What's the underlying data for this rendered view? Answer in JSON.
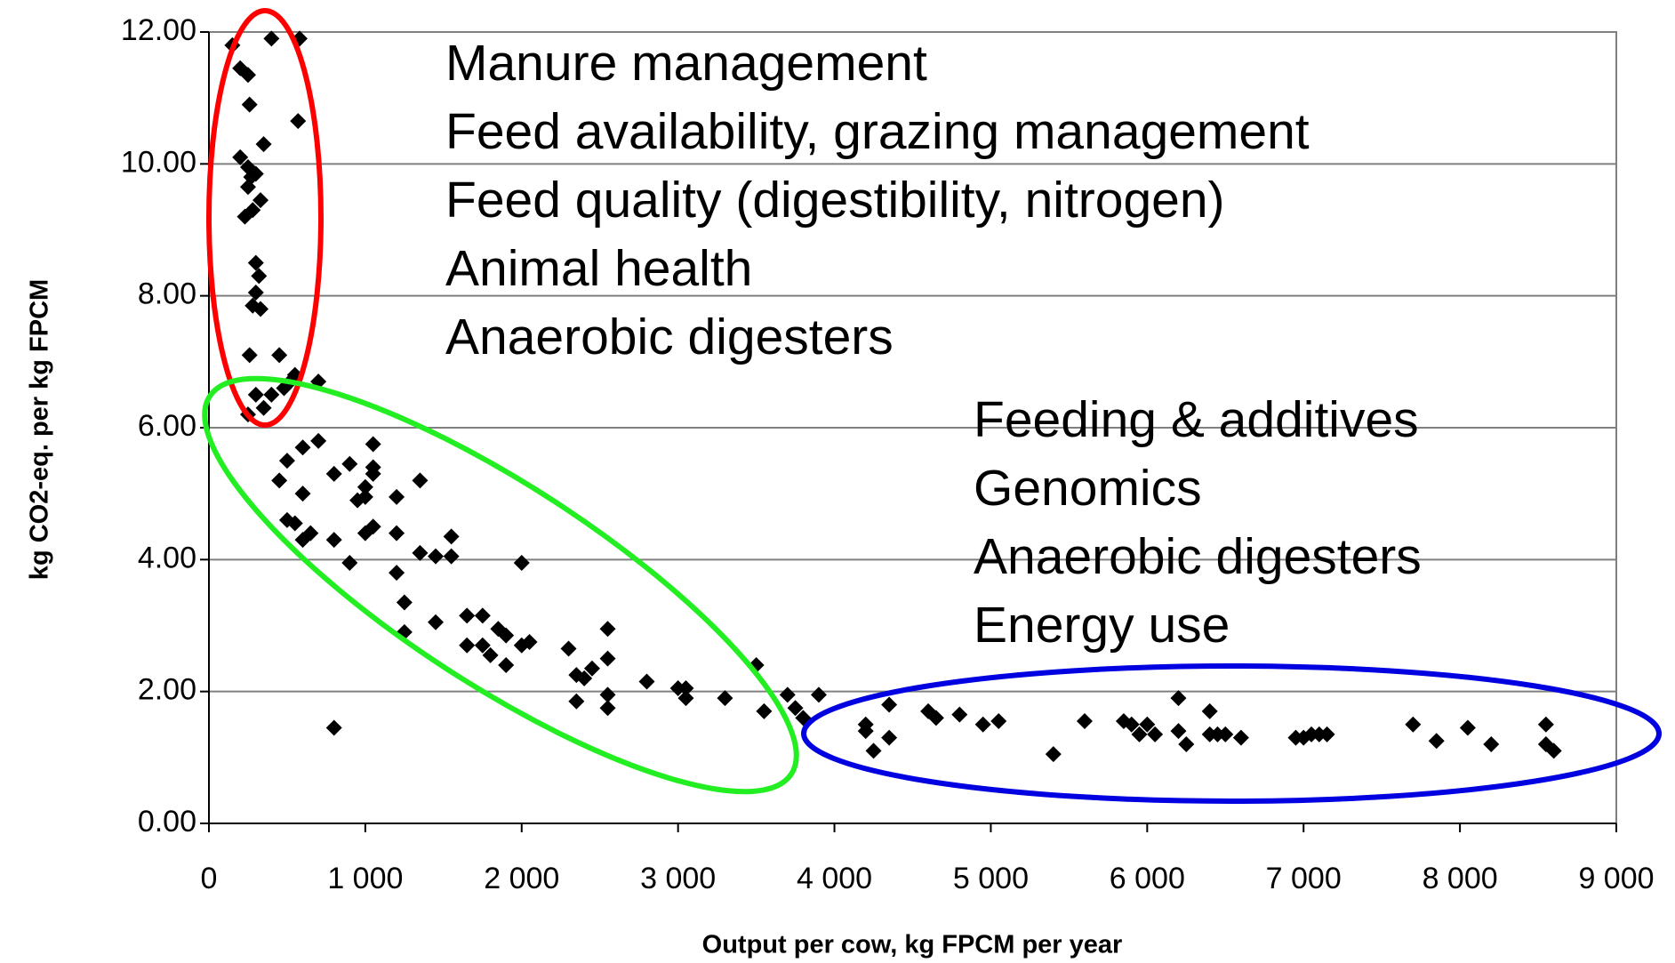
{
  "chart_data": {
    "type": "scatter",
    "x_label": "Output per cow, kg FPCM per year",
    "y_label": "kg CO2-eq. per kg FPCM",
    "xlim": [
      0,
      9000
    ],
    "ylim": [
      0,
      12
    ],
    "xticks": [
      0,
      {
        "value": 1000,
        "label": "1 000"
      },
      {
        "value": 2000,
        "label": "2 000"
      },
      {
        "value": 3000,
        "label": "3 000"
      },
      {
        "value": 4000,
        "label": "4 000"
      },
      {
        "value": 5000,
        "label": "5 000"
      },
      {
        "value": 6000,
        "label": "6 000"
      },
      {
        "value": 7000,
        "label": "7 000"
      },
      {
        "value": 8000,
        "label": "8 000"
      },
      {
        "value": 9000,
        "label": "9 000"
      }
    ],
    "yticks": [
      {
        "value": 0,
        "label": "0.00"
      },
      {
        "value": 2,
        "label": "2.00"
      },
      {
        "value": 4,
        "label": "4.00"
      },
      {
        "value": 6,
        "label": "6.00"
      },
      {
        "value": 8,
        "label": "8.00"
      },
      {
        "value": 10,
        "label": "10.00"
      },
      {
        "value": 12,
        "label": "12.00"
      }
    ],
    "grid": true,
    "color": "#000000",
    "x": [
      150,
      200,
      250,
      260,
      400,
      580,
      570,
      350,
      200,
      250,
      270,
      300,
      250,
      330,
      230,
      280,
      300,
      320,
      300,
      280,
      330,
      260,
      450,
      700,
      300,
      400,
      480,
      520,
      550,
      250,
      350,
      500,
      600,
      600,
      700,
      450,
      500,
      550,
      600,
      650,
      800,
      800,
      900,
      950,
      1000,
      1000,
      1050,
      1050,
      1050,
      900,
      1000,
      1050,
      1200,
      1200,
      1200,
      1250,
      1250,
      1350,
      1350,
      1450,
      1550,
      1550,
      1450,
      1650,
      1750,
      1650,
      1750,
      1800,
      1850,
      1900,
      1900,
      2000,
      2050,
      2000,
      2300,
      2350,
      2400,
      2450,
      2350,
      2550,
      2550,
      2550,
      2550,
      2800,
      3000,
      3050,
      3050,
      3300,
      3500,
      3550,
      3700,
      3750,
      3800,
      3900,
      800,
      4200,
      4200,
      4250,
      4350,
      4350,
      4600,
      4650,
      4800,
      4950,
      5050,
      5400,
      5600,
      5850,
      5900,
      5950,
      6000,
      6050,
      6200,
      6250,
      6200,
      6400,
      6400,
      6450,
      6500,
      6600,
      6950,
      7000,
      7050,
      7100,
      7150,
      7700,
      7850,
      8050,
      8200,
      8550,
      8550,
      8600
    ],
    "values": [
      11.8,
      11.45,
      11.35,
      10.9,
      11.9,
      11.9,
      10.65,
      10.3,
      10.1,
      9.95,
      9.8,
      9.85,
      9.65,
      9.45,
      9.2,
      9.3,
      8.5,
      8.3,
      8.05,
      7.85,
      7.8,
      7.1,
      7.1,
      6.7,
      6.5,
      6.5,
      6.6,
      6.7,
      6.8,
      6.2,
      6.3,
      5.5,
      5.0,
      5.7,
      5.8,
      5.2,
      4.6,
      4.55,
      4.3,
      4.4,
      5.3,
      4.3,
      5.45,
      4.9,
      4.95,
      5.1,
      5.3,
      5.4,
      5.75,
      3.95,
      4.4,
      4.5,
      4.95,
      4.4,
      3.8,
      3.35,
      2.9,
      5.2,
      4.1,
      4.05,
      4.35,
      4.05,
      3.05,
      3.15,
      3.15,
      2.7,
      2.7,
      2.55,
      2.95,
      2.85,
      2.4,
      3.95,
      2.75,
      2.7,
      2.65,
      2.25,
      2.2,
      2.35,
      1.85,
      2.95,
      2.5,
      1.95,
      1.75,
      2.15,
      2.05,
      2.05,
      1.9,
      1.9,
      2.4,
      1.7,
      1.95,
      1.75,
      1.6,
      1.95,
      1.45,
      1.5,
      1.4,
      1.1,
      1.8,
      1.3,
      1.7,
      1.6,
      1.65,
      1.5,
      1.55,
      1.05,
      1.55,
      1.55,
      1.5,
      1.35,
      1.5,
      1.35,
      1.4,
      1.2,
      1.9,
      1.7,
      1.35,
      1.35,
      1.35,
      1.3,
      1.3,
      1.3,
      1.35,
      1.35,
      1.35,
      1.5,
      1.25,
      1.45,
      1.2,
      1.5,
      1.2,
      1.1
    ],
    "annotations_green": [
      "Manure management",
      "Feed availability, grazing management",
      "Feed quality (digestibility, nitrogen)",
      "Animal health",
      "Anaerobic digesters"
    ],
    "annotations_blue": [
      "Feeding & additives",
      "Genomics",
      "Anaerobic digesters",
      "Energy use"
    ]
  }
}
